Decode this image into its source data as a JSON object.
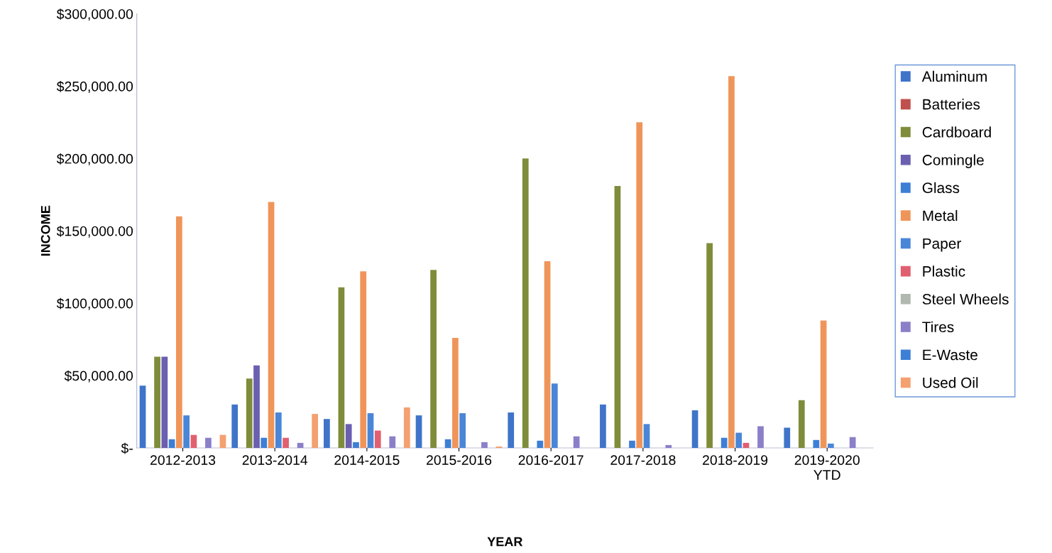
{
  "chart_data": {
    "type": "bar",
    "xlabel": "YEAR",
    "ylabel": "INCOME",
    "categories": [
      "2012-2013",
      "2013-2014",
      "2014-2015",
      "2015-2016",
      "2016-2017",
      "2017-2018",
      "2018-2019",
      "2019-2020\nYTD"
    ],
    "series": [
      {
        "name": "Aluminum",
        "color": "#3f74c9",
        "values": [
          43000,
          30000,
          20000,
          22500,
          24500,
          30000,
          26000,
          14000
        ]
      },
      {
        "name": "Batteries",
        "color": "#c0504d",
        "values": [
          0,
          0,
          0,
          0,
          0,
          0,
          0,
          0
        ]
      },
      {
        "name": "Cardboard",
        "color": "#7f8c3a",
        "values": [
          63000,
          48000,
          111000,
          123000,
          200000,
          181000,
          141500,
          33000
        ]
      },
      {
        "name": "Comingle",
        "color": "#6a5fb0",
        "values": [
          63000,
          57000,
          16500,
          0,
          0,
          0,
          0,
          0
        ]
      },
      {
        "name": "Glass",
        "color": "#3d7fd6",
        "values": [
          6000,
          7000,
          4000,
          6000,
          5000,
          5000,
          7000,
          5500
        ]
      },
      {
        "name": "Metal",
        "color": "#f0955a",
        "values": [
          160000,
          170000,
          122000,
          76000,
          129000,
          225000,
          257000,
          88000
        ]
      },
      {
        "name": "Paper",
        "color": "#4a86d8",
        "values": [
          22500,
          24500,
          24000,
          24000,
          44500,
          16500,
          10500,
          3000
        ]
      },
      {
        "name": "Plastic",
        "color": "#e06070",
        "values": [
          9000,
          7000,
          12000,
          0,
          0,
          0,
          3500,
          0
        ]
      },
      {
        "name": "Steel Wheels",
        "color": "#b0b8b0",
        "values": [
          0,
          0,
          0,
          0,
          0,
          0,
          0,
          0
        ]
      },
      {
        "name": "Tires",
        "color": "#8b7fc9",
        "values": [
          7000,
          3500,
          8000,
          4000,
          8000,
          2000,
          15000,
          7500
        ]
      },
      {
        "name": "E-Waste",
        "color": "#3d7fd6",
        "values": [
          0,
          0,
          0,
          0,
          0,
          0,
          0,
          0
        ]
      },
      {
        "name": "Used Oil",
        "color": "#f4a070",
        "values": [
          9000,
          23500,
          28000,
          1000,
          0,
          0,
          0,
          0
        ]
      }
    ],
    "ylim": [
      0,
      300000
    ],
    "yticks": [
      {
        "value": 0,
        "label": "$-"
      },
      {
        "value": 50000,
        "label": "$50,000.00"
      },
      {
        "value": 100000,
        "label": "$100,000.00"
      },
      {
        "value": 150000,
        "label": "$150,000.00"
      },
      {
        "value": 200000,
        "label": "$200,000.00"
      },
      {
        "value": 250000,
        "label": "$250,000.00"
      },
      {
        "value": 300000,
        "label": "$300,000.00"
      }
    ],
    "legend": "right"
  }
}
